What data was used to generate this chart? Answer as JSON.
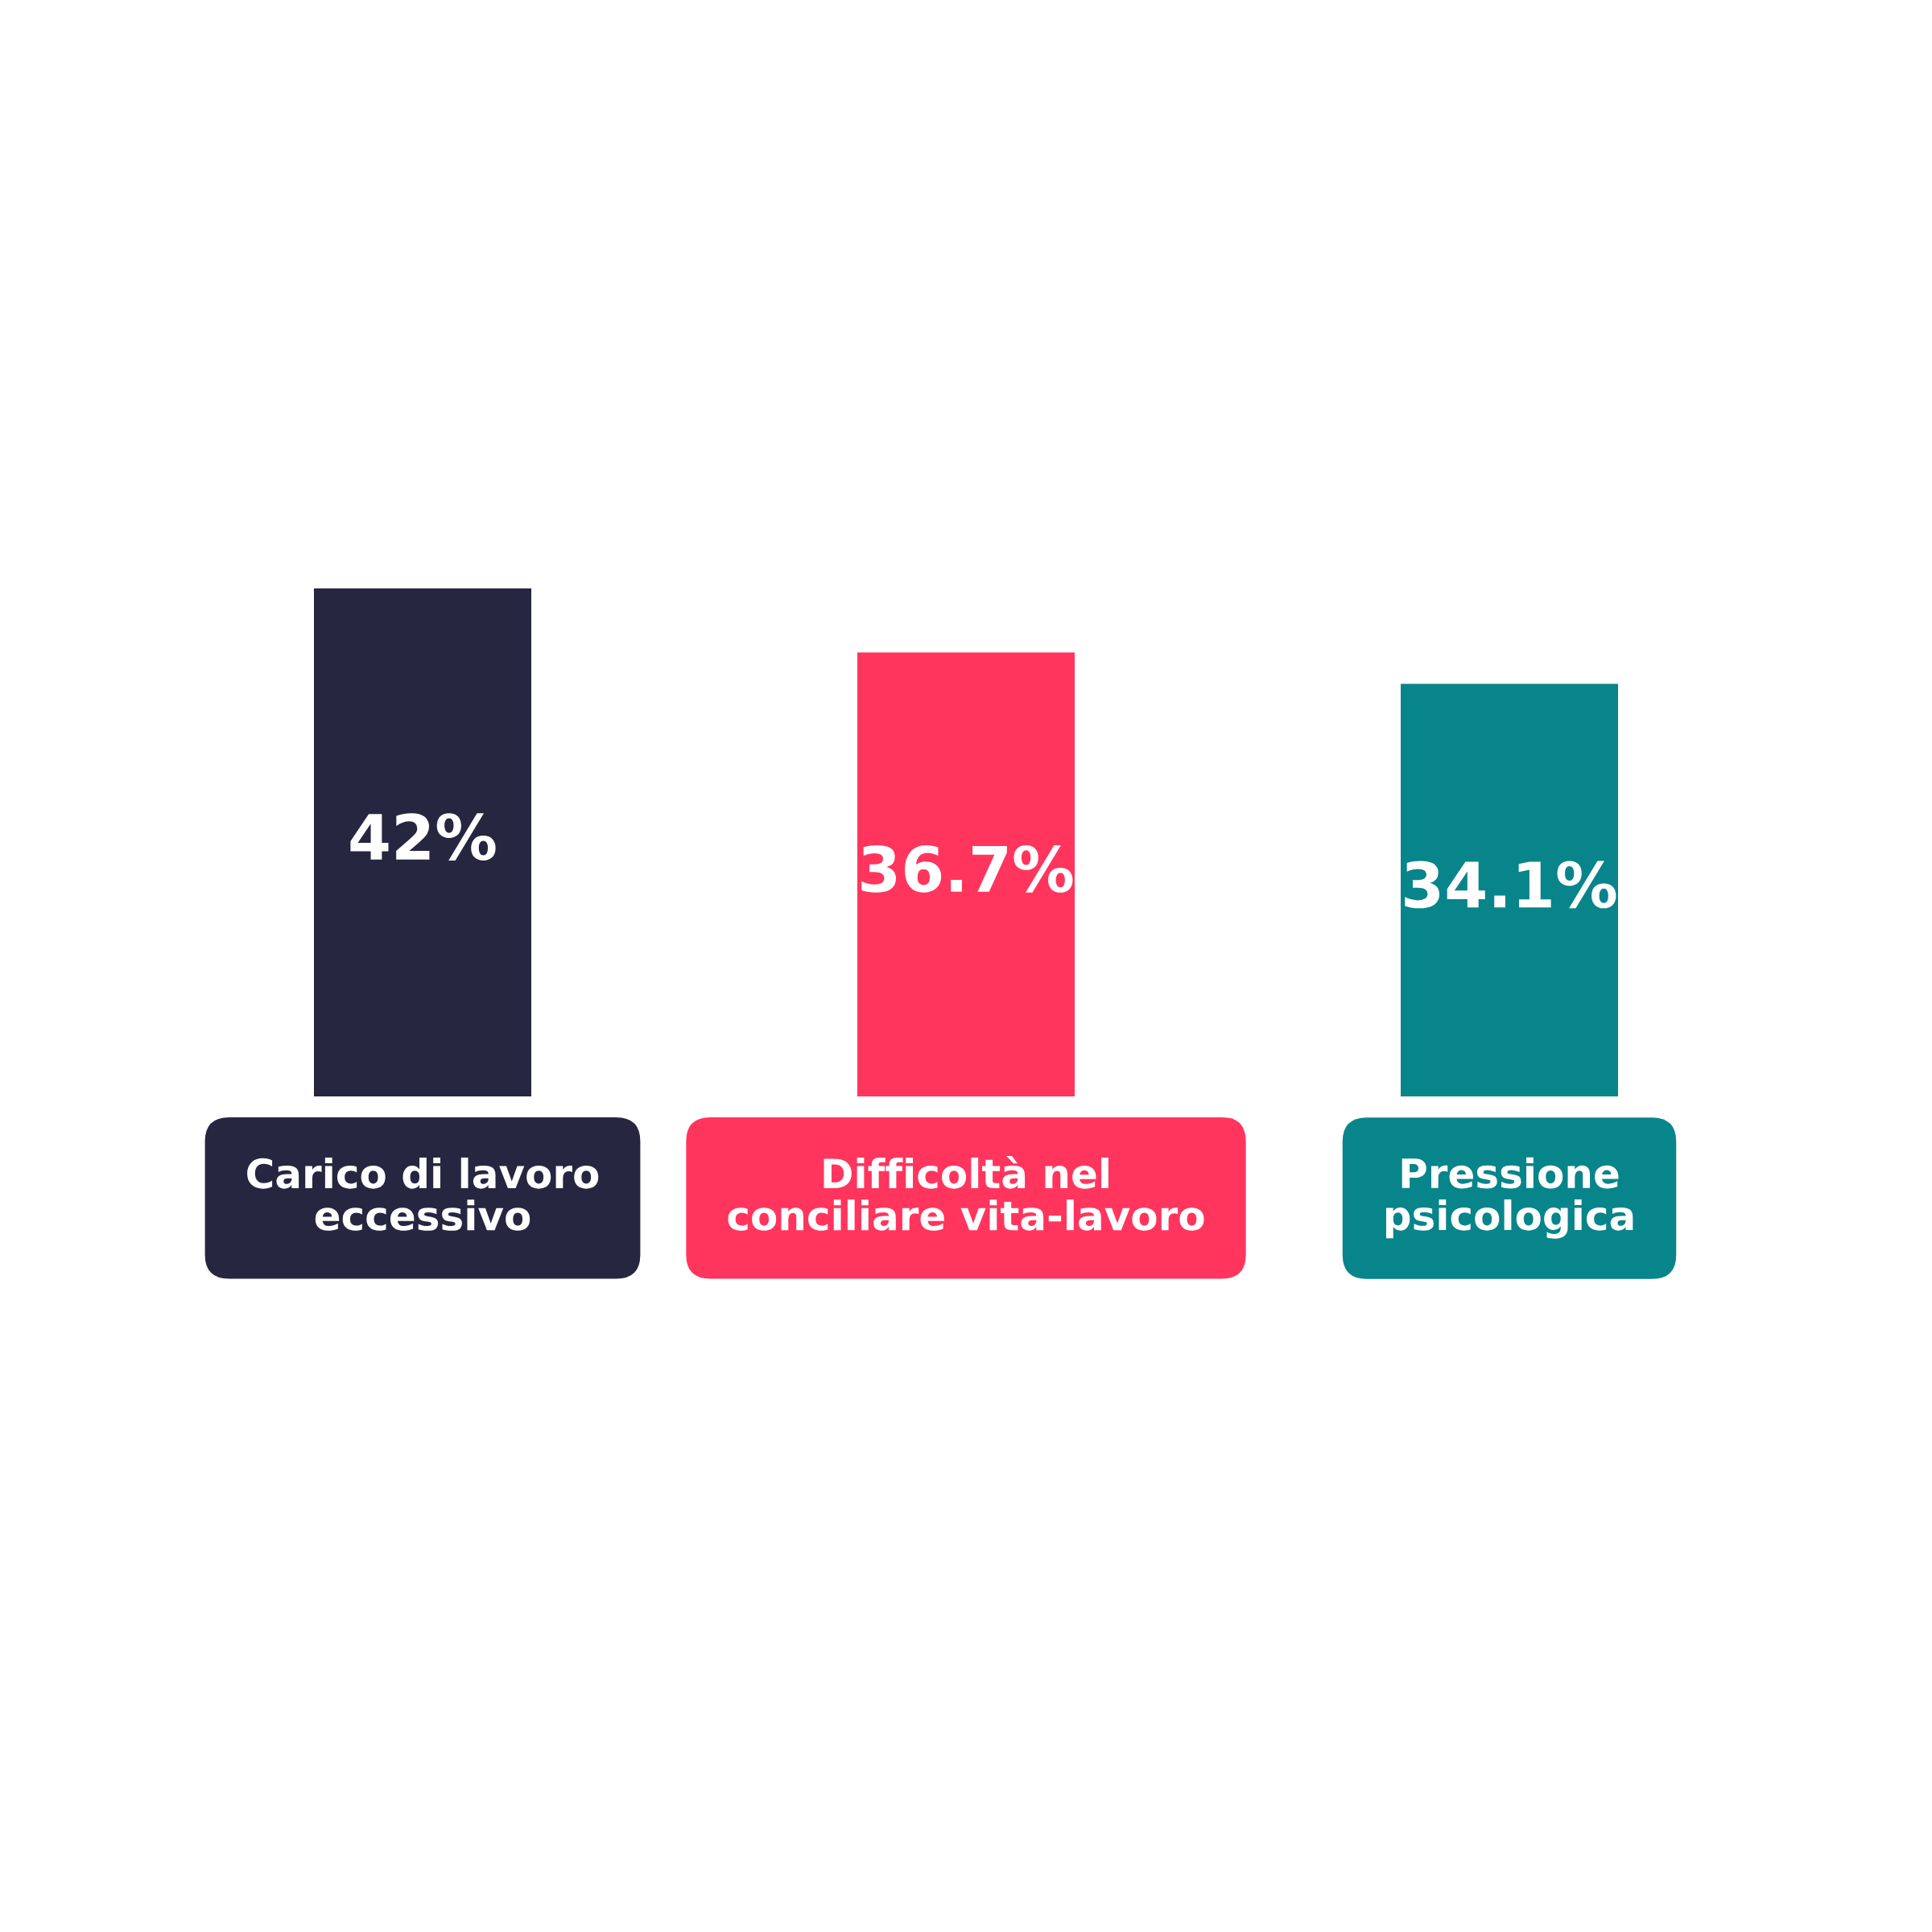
{
  "chart_data": {
    "type": "bar",
    "categories": [
      "Carico di lavoro\neccessivo",
      "Difficoltà nel\nconciliare vita-lavoro",
      "Pressione\npsicologica"
    ],
    "values": [
      42,
      36.7,
      34.1
    ],
    "colors": [
      "#262640",
      "#ff355e",
      "#08858a"
    ],
    "value_labels": [
      "42%",
      "36.7%",
      "34.1%"
    ]
  }
}
